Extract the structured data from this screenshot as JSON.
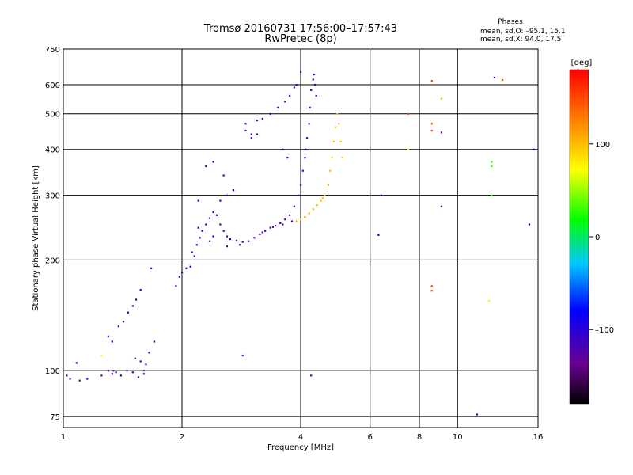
{
  "header": {
    "title_line1": "Tromsø 20160731 17:56:00–17:57:43",
    "title_line2": "RwPretec (8p)",
    "phases_title": "Phases",
    "phases_o": "mean, sd,O: –95.1, 15.1",
    "phases_x": "mean, sd,X:  94.0, 17.5"
  },
  "colorbar": {
    "label": "[deg]",
    "ticks": [
      {
        "label": "100",
        "value": 100
      },
      {
        "label": "0",
        "value": 0
      },
      {
        "label": "–100",
        "value": -100
      }
    ],
    "range": [
      -180,
      180
    ]
  },
  "chart_data": {
    "type": "scatter",
    "xlabel": "Frequency [MHz]",
    "ylabel": "Stationary phase Virtual Height [km]",
    "xscale": "log",
    "yscale": "log",
    "xlim": [
      1,
      16
    ],
    "ylim": [
      70,
      750
    ],
    "xticks": [
      {
        "label": "1",
        "value": 1
      },
      {
        "label": "2",
        "value": 2
      },
      {
        "label": "4",
        "value": 4
      },
      {
        "label": "6",
        "value": 6
      },
      {
        "label": "8",
        "value": 8
      },
      {
        "label": "10",
        "value": 10
      },
      {
        "label": "16",
        "value": 16
      }
    ],
    "yticks": [
      {
        "label": "75",
        "value": 75
      },
      {
        "label": "100",
        "value": 100
      },
      {
        "label": "200",
        "value": 200
      },
      {
        "label": "300",
        "value": 300
      },
      {
        "label": "400",
        "value": 400
      },
      {
        "label": "500",
        "value": 500
      },
      {
        "label": "600",
        "value": 600
      },
      {
        "label": "750",
        "value": 750
      }
    ],
    "grid": true,
    "colorscale": "rainbow (phase in degrees)",
    "series": [
      {
        "phase": -110,
        "points": [
          [
            1.02,
            97
          ],
          [
            1.04,
            95
          ],
          [
            1.08,
            105
          ],
          [
            1.15,
            95
          ],
          [
            1.3,
            100
          ],
          [
            1.33,
            98
          ],
          [
            1.36,
            99
          ],
          [
            1.4,
            97
          ],
          [
            1.45,
            100
          ],
          [
            1.5,
            99
          ],
          [
            1.55,
            96
          ],
          [
            1.6,
            100
          ],
          [
            1.52,
            108
          ],
          [
            1.57,
            106
          ],
          [
            1.62,
            104
          ],
          [
            1.65,
            112
          ],
          [
            1.7,
            120
          ],
          [
            1.33,
            120
          ],
          [
            1.38,
            132
          ],
          [
            1.42,
            136
          ],
          [
            1.46,
            144
          ],
          [
            1.5,
            150
          ],
          [
            1.53,
            156
          ],
          [
            1.57,
            166
          ],
          [
            1.3,
            124
          ],
          [
            1.67,
            190
          ],
          [
            1.93,
            170
          ],
          [
            1.97,
            180
          ],
          [
            2.0,
            185
          ],
          [
            2.05,
            190
          ],
          [
            2.1,
            192
          ],
          [
            2.15,
            205
          ],
          [
            2.12,
            210
          ],
          [
            2.18,
            220
          ],
          [
            2.22,
            230
          ],
          [
            2.25,
            240
          ],
          [
            2.3,
            250
          ],
          [
            2.35,
            260
          ],
          [
            2.4,
            270
          ],
          [
            2.45,
            265
          ],
          [
            2.5,
            250
          ],
          [
            2.55,
            240
          ],
          [
            2.6,
            232
          ],
          [
            2.65,
            228
          ],
          [
            2.75,
            226
          ],
          [
            2.85,
            224
          ],
          [
            2.95,
            225
          ],
          [
            3.05,
            230
          ],
          [
            3.15,
            235
          ],
          [
            3.25,
            240
          ],
          [
            3.35,
            245
          ],
          [
            3.45,
            248
          ],
          [
            3.55,
            252
          ],
          [
            3.65,
            258
          ],
          [
            3.75,
            265
          ],
          [
            3.85,
            280
          ],
          [
            3.95,
            300
          ],
          [
            4.0,
            320
          ],
          [
            4.05,
            350
          ],
          [
            4.1,
            380
          ],
          [
            4.12,
            400
          ],
          [
            4.15,
            430
          ],
          [
            4.2,
            470
          ],
          [
            4.22,
            520
          ],
          [
            4.25,
            580
          ],
          [
            4.3,
            620
          ],
          [
            4.32,
            640
          ],
          [
            4.35,
            600
          ],
          [
            4.38,
            560
          ],
          [
            3.1,
            480
          ],
          [
            3.2,
            485
          ],
          [
            3.35,
            500
          ],
          [
            3.5,
            520
          ],
          [
            3.65,
            540
          ],
          [
            3.75,
            560
          ],
          [
            3.85,
            590
          ],
          [
            3.9,
            600
          ],
          [
            4.0,
            650
          ],
          [
            2.3,
            360
          ],
          [
            2.4,
            370
          ],
          [
            2.55,
            340
          ],
          [
            2.7,
            310
          ],
          [
            2.6,
            300
          ],
          [
            2.2,
            290
          ],
          [
            2.5,
            290
          ],
          [
            3.6,
            400
          ],
          [
            3.7,
            380
          ],
          [
            3.0,
            430
          ],
          [
            3.1,
            440
          ],
          [
            2.9,
            450
          ],
          [
            6.4,
            300
          ],
          [
            11.2,
            76
          ],
          [
            12.4,
            628
          ],
          [
            2.85,
            110
          ],
          [
            4.25,
            97
          ]
        ]
      },
      {
        "phase": -140,
        "points": [
          [
            1.1,
            94
          ],
          [
            1.25,
            97
          ],
          [
            1.34,
            100
          ],
          [
            1.6,
            98
          ],
          [
            2.35,
            225
          ],
          [
            2.6,
            218
          ],
          [
            2.8,
            220
          ],
          [
            3.2,
            238
          ],
          [
            3.4,
            246
          ],
          [
            3.6,
            250
          ],
          [
            3.8,
            255
          ],
          [
            4.1,
            262
          ],
          [
            9.1,
            445
          ],
          [
            9.1,
            280
          ]
        ]
      },
      {
        "phase": -80,
        "points": [
          [
            2.2,
            245
          ],
          [
            2.4,
            232
          ],
          [
            2.9,
            470
          ],
          [
            3.0,
            440
          ],
          [
            15.2,
            250
          ],
          [
            15.6,
            400
          ],
          [
            6.3,
            234
          ]
        ]
      },
      {
        "phase": 100,
        "points": [
          [
            3.9,
            255
          ],
          [
            4.0,
            258
          ],
          [
            4.1,
            262
          ],
          [
            4.2,
            268
          ],
          [
            4.3,
            275
          ],
          [
            4.4,
            282
          ],
          [
            4.5,
            290
          ],
          [
            4.6,
            300
          ],
          [
            4.7,
            320
          ],
          [
            4.75,
            350
          ],
          [
            4.8,
            380
          ],
          [
            4.85,
            420
          ],
          [
            4.9,
            460
          ],
          [
            4.95,
            500
          ],
          [
            5.0,
            470
          ],
          [
            5.05,
            420
          ],
          [
            5.1,
            380
          ],
          [
            4.55,
            295
          ],
          [
            9.1,
            550
          ]
        ]
      },
      {
        "phase": 150,
        "points": [
          [
            8.6,
            615
          ],
          [
            7.5,
            500
          ],
          [
            8.6,
            470
          ],
          [
            8.6,
            450
          ],
          [
            8.6,
            170
          ],
          [
            8.6,
            165
          ],
          [
            13.0,
            618
          ]
        ]
      },
      {
        "phase": 70,
        "points": [
          [
            7.5,
            400
          ],
          [
            1.25,
            110
          ],
          [
            12.0,
            155
          ]
        ]
      },
      {
        "phase": 30,
        "points": [
          [
            12.2,
            370
          ],
          [
            12.2,
            360
          ],
          [
            12.2,
            300
          ]
        ]
      }
    ]
  }
}
